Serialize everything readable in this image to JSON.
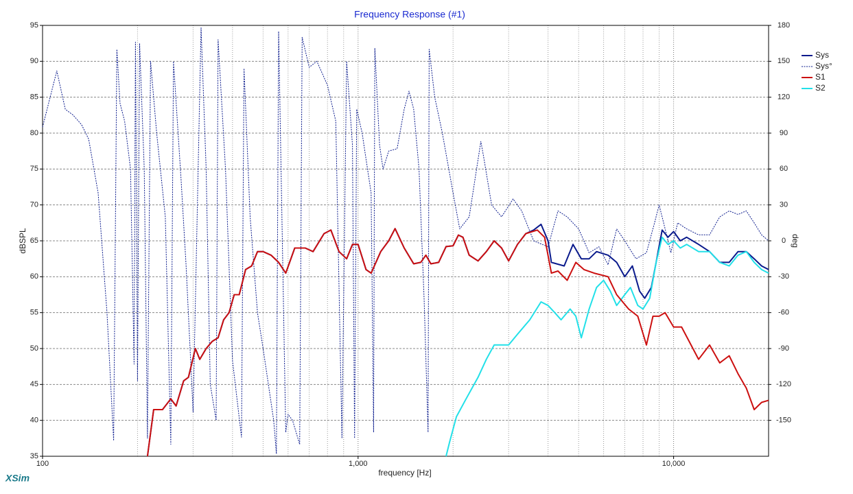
{
  "chart_data": {
    "type": "line",
    "title": "Frequency Response (#1)",
    "xlabel": "frequency [Hz]",
    "ylabel": "dBSPL",
    "y2label": "deg",
    "watermark": "XSim",
    "xscale": "log",
    "xlim": [
      100,
      20000
    ],
    "xticks": [
      100,
      {
        "value": 1000,
        "label": "1,000"
      },
      {
        "value": 10000,
        "label": "10,000"
      }
    ],
    "ylim": [
      35,
      95
    ],
    "yticks": [
      35,
      40,
      45,
      50,
      55,
      60,
      65,
      70,
      75,
      80,
      85,
      90,
      95
    ],
    "y2lim": [
      -180,
      180
    ],
    "y2ticks": [
      180,
      150,
      120,
      90,
      60,
      30,
      0,
      -30,
      -60,
      -90,
      -120,
      -150
    ],
    "grid": true,
    "legend": "right",
    "series": [
      {
        "name": "Sys°",
        "color": "#0a1a8c",
        "dashed": true,
        "axis": "y2",
        "x": [
          100,
          111,
          118,
          125,
          133,
          140,
          150,
          160,
          168,
          172,
          176,
          182,
          190,
          195,
          197,
          200,
          203,
          210,
          215,
          220,
          230,
          245,
          255,
          260,
          275,
          285,
          300,
          318,
          330,
          340,
          355,
          360,
          380,
          400,
          427,
          435,
          455,
          480,
          500,
          540,
          551,
          560,
          590,
          600,
          620,
          653,
          665,
          700,
          740,
          800,
          850,
          889,
          920,
          960,
          975,
          990,
          1030,
          1100,
          1120,
          1130,
          1170,
          1200,
          1250,
          1330,
          1400,
          1450,
          1500,
          1560,
          1620,
          1667,
          1680,
          1750,
          1850,
          2000,
          2100,
          2250,
          2450,
          2500,
          2650,
          2850,
          3100,
          3300,
          3600,
          4000,
          4300,
          4600,
          5000,
          5400,
          5800,
          6200,
          6600,
          7000,
          7600,
          8200,
          8700,
          9000,
          9400,
          9800,
          10300,
          11000,
          12000,
          13000,
          14000,
          15000,
          16000,
          17000,
          18000,
          19000,
          20000
        ],
        "values": [
          95,
          142,
          110,
          105,
          97,
          85,
          40,
          -60,
          -167,
          160,
          115,
          100,
          60,
          -103,
          166,
          -117,
          165,
          60,
          -165,
          150,
          90,
          20,
          -170,
          150,
          50,
          -20,
          -143,
          178,
          60,
          -120,
          -150,
          168,
          60,
          -100,
          -164,
          144,
          20,
          -60,
          -90,
          -150,
          -178,
          175,
          -160,
          -145,
          -150,
          -170,
          170,
          145,
          150,
          130,
          100,
          -165,
          150,
          80,
          -165,
          110,
          90,
          40,
          -160,
          161,
          80,
          60,
          75,
          77,
          110,
          125,
          110,
          60,
          -50,
          -160,
          160,
          120,
          90,
          40,
          10,
          20,
          83,
          70,
          30,
          20,
          35,
          25,
          0,
          -5,
          25,
          20,
          10,
          -10,
          -5,
          -20,
          10,
          0,
          -15,
          -10,
          15,
          30,
          10,
          -10,
          15,
          10,
          5,
          5,
          20,
          25,
          22,
          25,
          15,
          5,
          0
        ]
      },
      {
        "name": "Sys",
        "color": "#0a1a8c",
        "axis": "y",
        "x": [
          215,
          225,
          240,
          255,
          265,
          280,
          290,
          305,
          315,
          330,
          345,
          360,
          375,
          390,
          405,
          420,
          440,
          460,
          480,
          500,
          530,
          560,
          590,
          630,
          680,
          720,
          780,
          820,
          870,
          920,
          960,
          1000,
          1060,
          1100,
          1180,
          1250,
          1310,
          1400,
          1500,
          1580,
          1640,
          1700,
          1800,
          1900,
          2000,
          2080,
          2150,
          2250,
          2400,
          2550,
          2700,
          2850,
          3000,
          3200,
          3400,
          3600,
          3800,
          4000,
          4100,
          4500,
          4800,
          5100,
          5400,
          5700,
          6200,
          6600,
          7000,
          7400,
          7800,
          8100,
          8500,
          8800,
          9200,
          9600,
          10000,
          10500,
          11000,
          12000,
          13000,
          14000,
          15000,
          16000,
          17000,
          18000,
          19000,
          20000
        ],
        "values": [
          35,
          41.5,
          41.5,
          43,
          42,
          45.5,
          46,
          50,
          48.5,
          50,
          51,
          51.5,
          54,
          55,
          57.5,
          57.5,
          61,
          61.5,
          63.5,
          63.5,
          63,
          62,
          60.5,
          64,
          64,
          63.5,
          66,
          66.5,
          63.5,
          62.5,
          64.5,
          64.5,
          61,
          60.5,
          63.5,
          65,
          66.7,
          64,
          61.8,
          62,
          63,
          61.8,
          62,
          64.2,
          64.3,
          65.8,
          65.5,
          63,
          62.2,
          63.5,
          65,
          64,
          62.2,
          64.5,
          66,
          66.5,
          67.3,
          65,
          62,
          61.5,
          64.5,
          62.5,
          62.5,
          63.5,
          63,
          62,
          60,
          61.5,
          58,
          57,
          58.5,
          62,
          66.5,
          65.5,
          66.3,
          65,
          65.5,
          64.5,
          63.5,
          62,
          62,
          63.5,
          63.5,
          62.5,
          61.5,
          61
        ]
      },
      {
        "name": "S2",
        "color": "#22e0e8",
        "axis": "y",
        "x": [
          1900,
          1950,
          2050,
          2200,
          2400,
          2550,
          2700,
          3000,
          3200,
          3500,
          3800,
          4000,
          4200,
          4400,
          4700,
          4900,
          5100,
          5400,
          5700,
          6000,
          6300,
          6600,
          7000,
          7300,
          7700,
          8000,
          8400,
          8800,
          9200,
          9600,
          10000,
          10500,
          11000,
          12000,
          13000,
          14000,
          15000,
          16000,
          17000,
          18000,
          19000,
          20000
        ],
        "values": [
          35,
          37,
          40.5,
          43,
          46,
          48.5,
          50.5,
          50.5,
          52,
          54,
          56.5,
          56,
          55,
          54,
          55.5,
          54.5,
          51.5,
          55.5,
          58.5,
          59.5,
          58,
          56,
          57.5,
          58.5,
          56,
          55.5,
          57,
          62,
          65.5,
          64.5,
          65,
          64,
          64.5,
          63.5,
          63.5,
          62,
          61.5,
          63,
          63.5,
          62,
          61,
          60.5
        ]
      },
      {
        "name": "S1",
        "color": "#cc1010",
        "axis": "y",
        "x": [
          215,
          225,
          240,
          255,
          265,
          280,
          290,
          305,
          315,
          330,
          345,
          360,
          375,
          390,
          405,
          420,
          440,
          460,
          480,
          500,
          530,
          560,
          590,
          630,
          680,
          720,
          780,
          820,
          870,
          920,
          960,
          1000,
          1060,
          1100,
          1180,
          1250,
          1310,
          1400,
          1500,
          1580,
          1640,
          1700,
          1800,
          1900,
          2000,
          2080,
          2150,
          2250,
          2400,
          2550,
          2700,
          2850,
          3000,
          3200,
          3400,
          3700,
          3900,
          4100,
          4300,
          4600,
          4900,
          5200,
          5600,
          6200,
          6600,
          7200,
          7700,
          8200,
          8600,
          9000,
          9400,
          10000,
          10600,
          11200,
          12000,
          13000,
          14000,
          15000,
          16000,
          17000,
          18000,
          19000,
          20000
        ],
        "values": [
          35,
          41.5,
          41.5,
          43,
          42,
          45.5,
          46,
          50,
          48.5,
          50,
          51,
          51.5,
          54,
          55,
          57.5,
          57.5,
          61,
          61.5,
          63.5,
          63.5,
          63,
          62,
          60.5,
          64,
          64,
          63.5,
          66,
          66.5,
          63.5,
          62.5,
          64.5,
          64.5,
          61,
          60.5,
          63.5,
          65,
          66.7,
          64,
          61.8,
          62,
          63,
          61.8,
          62,
          64.2,
          64.3,
          65.8,
          65.5,
          63,
          62.2,
          63.5,
          65,
          64,
          62.2,
          64.5,
          66,
          66.5,
          65.5,
          60.5,
          60.8,
          59.5,
          62,
          61,
          60.5,
          60,
          57.5,
          55.5,
          54.5,
          50.5,
          54.5,
          54.5,
          55,
          53,
          53,
          51,
          48.5,
          50.5,
          48,
          49,
          46.5,
          44.5,
          41.5,
          42.5,
          42.8
        ]
      }
    ]
  }
}
